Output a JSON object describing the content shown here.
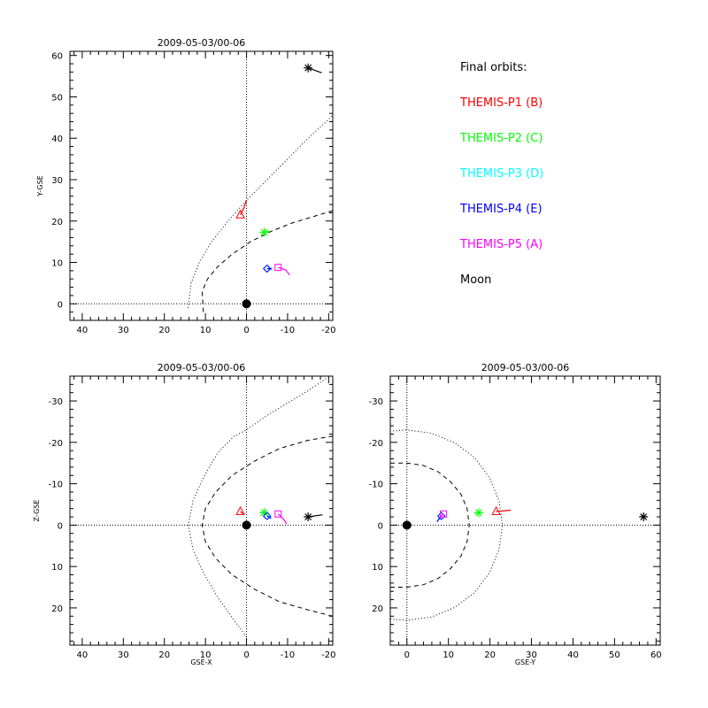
{
  "colors": {
    "P1": "#ff0000",
    "P2": "#00ff00",
    "P3": "#00ffff",
    "P4": "#0000ff",
    "P5": "#ff00ff",
    "Moon": "#000000"
  },
  "legend": {
    "title": "Final orbits:",
    "entries": [
      {
        "label": "THEMIS-P1 (B)",
        "color": "#ff0000"
      },
      {
        "label": "THEMIS-P2 (C)",
        "color": "#00ff00"
      },
      {
        "label": "THEMIS-P3 (D)",
        "color": "#00ffff"
      },
      {
        "label": "THEMIS-P4 (E)",
        "color": "#0000ff"
      },
      {
        "label": "THEMIS-P5 (A)",
        "color": "#ff00ff"
      },
      {
        "label": "Moon",
        "color": "#000000"
      }
    ]
  },
  "chart_data": [
    {
      "type": "scatter",
      "title": "2009-05-03/00-06",
      "xlabel": "",
      "ylabel": "Y-GSE",
      "xlim": [
        43,
        -21
      ],
      "ylim": [
        61,
        -4
      ],
      "xticks": [
        40,
        30,
        20,
        10,
        0,
        -10,
        -20
      ],
      "xtick_labels": [
        "40",
        "30",
        "20",
        "10",
        "0",
        "-10",
        "-20"
      ],
      "yticks": [
        0,
        10,
        20,
        30,
        40,
        50,
        60
      ],
      "ytick_labels": [
        "0",
        "10",
        "20",
        "30",
        "40",
        "50",
        "60"
      ],
      "earth": [
        0,
        0
      ],
      "reference_lines": {
        "x": 0,
        "y": 0
      },
      "points": [
        {
          "name": "THEMIS-P1 (B)",
          "marker": "triangle",
          "color": "#ff0000",
          "x": 1.5,
          "y": 21.5,
          "trail": [
            [
              1.5,
              21.5
            ],
            [
              0.7,
              23
            ],
            [
              0,
              25
            ]
          ]
        },
        {
          "name": "THEMIS-P2 (C)",
          "marker": "asterisk",
          "color": "#00ff00",
          "x": -4.3,
          "y": 17.3,
          "trail": [
            [
              -4.3,
              17.3
            ],
            [
              -5.8,
              17.5
            ]
          ]
        },
        {
          "name": "THEMIS-P3 (D)",
          "marker": "diamond",
          "color": "#00ffff",
          "x": -5,
          "y": 8.5,
          "trail": [
            [
              -5,
              8.5
            ],
            [
              -6,
              8.7
            ]
          ]
        },
        {
          "name": "THEMIS-P4 (E)",
          "marker": "diamond",
          "color": "#0000ff",
          "x": -5,
          "y": 8.5,
          "trail": [
            [
              -5,
              8.5
            ],
            [
              -6.2,
              8.4
            ]
          ]
        },
        {
          "name": "THEMIS-P5 (A)",
          "marker": "square",
          "color": "#ff00ff",
          "x": -7.7,
          "y": 8.8,
          "trail": [
            [
              -7.7,
              8.8
            ],
            [
              -9.5,
              8.2
            ],
            [
              -10.5,
              7
            ]
          ]
        },
        {
          "name": "Moon",
          "marker": "asterisk",
          "color": "#000000",
          "x": -15,
          "y": 57,
          "trail": [
            [
              -15,
              57
            ],
            [
              -18.3,
              55.8
            ]
          ]
        }
      ],
      "curves": [
        {
          "style": "dashed",
          "points": [
            [
              10.5,
              -2
            ],
            [
              10.8,
              3
            ],
            [
              9.5,
              6
            ],
            [
              7,
              9
            ],
            [
              3.5,
              12
            ],
            [
              -1,
              15
            ],
            [
              -6,
              17.5
            ],
            [
              -11,
              19.5
            ],
            [
              -16,
              21
            ],
            [
              -21,
              22.5
            ]
          ]
        },
        {
          "style": "dotted",
          "points": [
            [
              14.2,
              -1
            ],
            [
              13.5,
              5
            ],
            [
              11.5,
              10
            ],
            [
              8.5,
              15
            ],
            [
              4.5,
              20
            ],
            [
              0,
              25
            ],
            [
              -5,
              30
            ],
            [
              -10,
              35
            ],
            [
              -15,
              40
            ],
            [
              -21,
              45.5
            ]
          ]
        }
      ]
    },
    {
      "type": "scatter",
      "title": "2009-05-03/00-06",
      "xlabel": "GSE-X",
      "ylabel": "Z-GSE",
      "xlim": [
        43,
        -21
      ],
      "ylim": [
        -36,
        29
      ],
      "xticks": [
        40,
        30,
        20,
        10,
        0,
        -10,
        -20
      ],
      "xtick_labels": [
        "40",
        "30",
        "20",
        "10",
        "0",
        "-10",
        "-20"
      ],
      "yticks": [
        20,
        10,
        0,
        -10,
        -20,
        -30
      ],
      "ytick_labels": [
        "20",
        "10",
        "0",
        "-10",
        "-20",
        "-30"
      ],
      "earth": [
        0,
        0
      ],
      "reference_lines": {
        "x": 0,
        "y": 0
      },
      "points": [
        {
          "name": "THEMIS-P1 (B)",
          "marker": "triangle",
          "color": "#ff0000",
          "x": 1.5,
          "y": -3.3,
          "trail": [
            [
              1.5,
              -3.3
            ],
            [
              0.8,
              -2.7
            ]
          ]
        },
        {
          "name": "THEMIS-P2 (C)",
          "marker": "asterisk",
          "color": "#00ff00",
          "x": -4.3,
          "y": -3,
          "trail": [
            [
              -4.3,
              -3
            ],
            [
              -5.5,
              -2
            ]
          ]
        },
        {
          "name": "THEMIS-P3 (D)",
          "marker": "diamond",
          "color": "#00ffff",
          "x": -5,
          "y": -2.2,
          "trail": [
            [
              -5,
              -2.2
            ],
            [
              -6,
              -2
            ]
          ]
        },
        {
          "name": "THEMIS-P4 (E)",
          "marker": "diamond",
          "color": "#0000ff",
          "x": -5,
          "y": -2.2,
          "trail": [
            [
              -5,
              -2.2
            ],
            [
              -6,
              -1.6
            ]
          ]
        },
        {
          "name": "THEMIS-P5 (A)",
          "marker": "square",
          "color": "#ff00ff",
          "x": -7.7,
          "y": -2.7,
          "trail": [
            [
              -7.7,
              -2.7
            ],
            [
              -9,
              -1.5
            ],
            [
              -9.8,
              -0.3
            ]
          ]
        },
        {
          "name": "Moon",
          "marker": "asterisk",
          "color": "#000000",
          "x": -15,
          "y": -2,
          "trail": [
            [
              -15,
              -2
            ],
            [
              -18.5,
              -2.5
            ]
          ]
        }
      ],
      "curves": [
        {
          "style": "dashed",
          "points": [
            [
              -21,
              22
            ],
            [
              -15,
              20.5
            ],
            [
              -8,
              18.5
            ],
            [
              -2,
              15.5
            ],
            [
              3.5,
              12
            ],
            [
              7.5,
              8
            ],
            [
              10,
              4
            ],
            [
              10.8,
              0
            ],
            [
              10,
              -4
            ],
            [
              7.5,
              -8
            ],
            [
              3.5,
              -12
            ],
            [
              -2,
              -15.5
            ],
            [
              -8,
              -18.5
            ],
            [
              -15,
              -20.5
            ],
            [
              -21,
              -21.5
            ]
          ]
        },
        {
          "style": "dotted",
          "points": [
            [
              0,
              27
            ],
            [
              3,
              23
            ],
            [
              7,
              17.5
            ],
            [
              10.5,
              11.5
            ],
            [
              13,
              6
            ],
            [
              14.2,
              0
            ],
            [
              13,
              -6
            ],
            [
              10.5,
              -11.5
            ],
            [
              7,
              -17.5
            ],
            [
              3,
              -21.5
            ],
            [
              0,
              -23
            ],
            [
              -5,
              -26.5
            ],
            [
              -10,
              -29.5
            ],
            [
              -15,
              -32.5
            ],
            [
              -19.5,
              -35.5
            ]
          ]
        }
      ]
    },
    {
      "type": "scatter",
      "title": "2009-05-03/00-06",
      "xlabel": "GSE-Y",
      "ylabel": "",
      "xlim": [
        -4,
        61
      ],
      "ylim": [
        -36,
        29
      ],
      "xticks": [
        0,
        10,
        20,
        30,
        40,
        50,
        60
      ],
      "xtick_labels": [
        "0",
        "10",
        "20",
        "30",
        "40",
        "50",
        "60"
      ],
      "yticks": [
        20,
        10,
        0,
        -10,
        -20,
        -30
      ],
      "ytick_labels": [
        "20",
        "10",
        "0",
        "-10",
        "-20",
        "-30"
      ],
      "earth": [
        0,
        0
      ],
      "reference_lines": {
        "x": 0,
        "y": 0
      },
      "points": [
        {
          "name": "THEMIS-P1 (B)",
          "marker": "triangle",
          "color": "#ff0000",
          "x": 21.5,
          "y": -3.3,
          "trail": [
            [
              21.5,
              -3.3
            ],
            [
              25,
              -3.6
            ]
          ]
        },
        {
          "name": "THEMIS-P2 (C)",
          "marker": "asterisk",
          "color": "#00ff00",
          "x": 17.3,
          "y": -3,
          "trail": [
            [
              17.3,
              -3
            ],
            [
              16.8,
              -2.8
            ]
          ]
        },
        {
          "name": "THEMIS-P3 (D)",
          "marker": "diamond",
          "color": "#00ffff",
          "x": 8.3,
          "y": -2.2,
          "trail": [
            [
              8.3,
              -2.2
            ],
            [
              7.5,
              -1.5
            ]
          ]
        },
        {
          "name": "THEMIS-P4 (E)",
          "marker": "diamond",
          "color": "#0000ff",
          "x": 8.3,
          "y": -2.2,
          "trail": [
            [
              8.3,
              -2.2
            ],
            [
              7.2,
              -0.8
            ]
          ]
        },
        {
          "name": "THEMIS-P5 (A)",
          "marker": "square",
          "color": "#ff00ff",
          "x": 8.8,
          "y": -2.7,
          "trail": [
            [
              8.8,
              -2.7
            ],
            [
              7.8,
              -1.8
            ]
          ]
        },
        {
          "name": "Moon",
          "marker": "asterisk",
          "color": "#000000",
          "x": 57,
          "y": -2,
          "trail": [
            [
              57,
              -2
            ],
            [
              56.5,
              -2.3
            ]
          ]
        }
      ],
      "curves": [
        {
          "style": "dashed",
          "points": [
            [
              -4,
              15
            ],
            [
              0,
              15
            ],
            [
              4,
              14.4
            ],
            [
              7.5,
              12.9
            ],
            [
              10.5,
              10.5
            ],
            [
              13,
              7.5
            ],
            [
              14.5,
              4
            ],
            [
              15,
              0
            ],
            [
              14.5,
              -4
            ],
            [
              13,
              -7.5
            ],
            [
              10.5,
              -10.5
            ],
            [
              7.5,
              -12.9
            ],
            [
              4,
              -14.4
            ],
            [
              0,
              -15
            ],
            [
              -4,
              -15
            ]
          ]
        },
        {
          "style": "dotted",
          "points": [
            [
              -4,
              22.7
            ],
            [
              0,
              23
            ],
            [
              5.9,
              22.2
            ],
            [
              11.5,
              19.9
            ],
            [
              16.3,
              16.3
            ],
            [
              19.9,
              11.5
            ],
            [
              22.2,
              5.9
            ],
            [
              23,
              0
            ],
            [
              22.2,
              -5.9
            ],
            [
              19.9,
              -11.5
            ],
            [
              16.3,
              -16.3
            ],
            [
              11.5,
              -19.9
            ],
            [
              5.9,
              -22.2
            ],
            [
              0,
              -23
            ],
            [
              -4,
              -22.7
            ]
          ]
        }
      ]
    }
  ]
}
